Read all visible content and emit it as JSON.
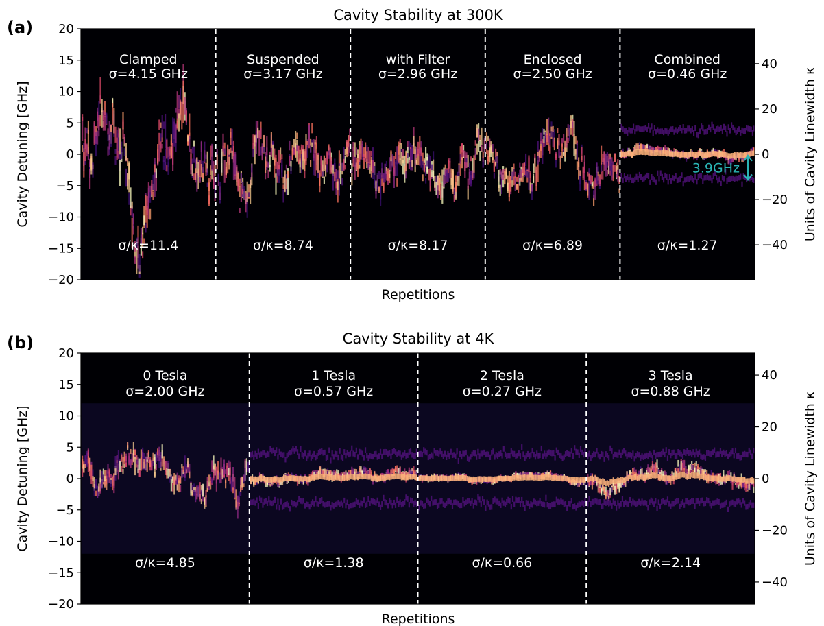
{
  "chart_data": [
    {
      "type": "heatmap",
      "panel_label": "(a)",
      "title": "Cavity Stability at 300K",
      "xlabel": "Repetitions",
      "ylabel": "Cavity Detuning [GHz]",
      "ylabel_right": "Units of Cavity Linewidth κ",
      "ylim": [
        -20,
        20
      ],
      "yticks": [
        -20,
        -15,
        -10,
        -5,
        0,
        5,
        10,
        15,
        20
      ],
      "ytick_labels": [
        "−20",
        "−15",
        "−10",
        "−5",
        "0",
        "5",
        "10",
        "15",
        "20"
      ],
      "ylim_right": [
        -55.4,
        55.4
      ],
      "yticks_right": [
        -40,
        -20,
        0,
        20,
        40
      ],
      "ytick_labels_right": [
        "−40",
        "−20",
        "0",
        "20",
        "40"
      ],
      "grid": false,
      "colormap": "magma",
      "segments": [
        {
          "name": "Clamped",
          "sigma_label": "σ=4.15 GHz",
          "sigma_ghz": 4.15,
          "ratio_label": "σ/κ=11.4",
          "sigma_over_kappa": 11.4
        },
        {
          "name": "Suspended",
          "sigma_label": "σ=3.17 GHz",
          "sigma_ghz": 3.17,
          "ratio_label": "σ/κ=8.74",
          "sigma_over_kappa": 8.74
        },
        {
          "name": "with Filter",
          "sigma_label": "σ=2.96 GHz",
          "sigma_ghz": 2.96,
          "ratio_label": "σ/κ=8.17",
          "sigma_over_kappa": 8.17
        },
        {
          "name": "Enclosed",
          "sigma_label": "σ=2.50 GHz",
          "sigma_ghz": 2.5,
          "ratio_label": "σ/κ=6.89",
          "sigma_over_kappa": 6.89
        },
        {
          "name": "Combined",
          "sigma_label": "σ=0.46 GHz",
          "sigma_ghz": 0.46,
          "ratio_label": "σ/κ=1.27",
          "sigma_over_kappa": 1.27
        }
      ],
      "annotation": {
        "text": "3.9GHz",
        "from_ghz": -4.1,
        "to_ghz": -0.2,
        "color": "#2ab5b5"
      }
    },
    {
      "type": "heatmap",
      "panel_label": "(b)",
      "title": "Cavity Stability at 4K",
      "xlabel": "Repetitions",
      "ylabel": "Cavity Detuning [GHz]",
      "ylabel_right": "Units of Cavity Linewidth κ",
      "ylim": [
        -20,
        20
      ],
      "yticks": [
        -20,
        -15,
        -10,
        -5,
        0,
        5,
        10,
        15,
        20
      ],
      "ytick_labels": [
        "−20",
        "−15",
        "−10",
        "−5",
        "0",
        "5",
        "10",
        "15",
        "20"
      ],
      "ylim_right": [
        -48.5,
        48.5
      ],
      "yticks_right": [
        -40,
        -20,
        0,
        20,
        40
      ],
      "ytick_labels_right": [
        "−40",
        "−20",
        "0",
        "20",
        "40"
      ],
      "grid": false,
      "colormap": "magma",
      "data_band_ghz": [
        -12,
        12
      ],
      "segments": [
        {
          "name": "0 Tesla",
          "sigma_label": "σ=2.00 GHz",
          "sigma_ghz": 2.0,
          "ratio_label": "σ/κ=4.85",
          "sigma_over_kappa": 4.85
        },
        {
          "name": "1 Tesla",
          "sigma_label": "σ=0.57 GHz",
          "sigma_ghz": 0.57,
          "ratio_label": "σ/κ=1.38",
          "sigma_over_kappa": 1.38
        },
        {
          "name": "2 Tesla",
          "sigma_label": "σ=0.27 GHz",
          "sigma_ghz": 0.27,
          "ratio_label": "σ/κ=0.66",
          "sigma_over_kappa": 0.66
        },
        {
          "name": "3 Tesla",
          "sigma_label": "σ=0.88 GHz",
          "sigma_ghz": 0.88,
          "ratio_label": "σ/κ=2.14",
          "sigma_over_kappa": 2.14
        }
      ]
    }
  ]
}
